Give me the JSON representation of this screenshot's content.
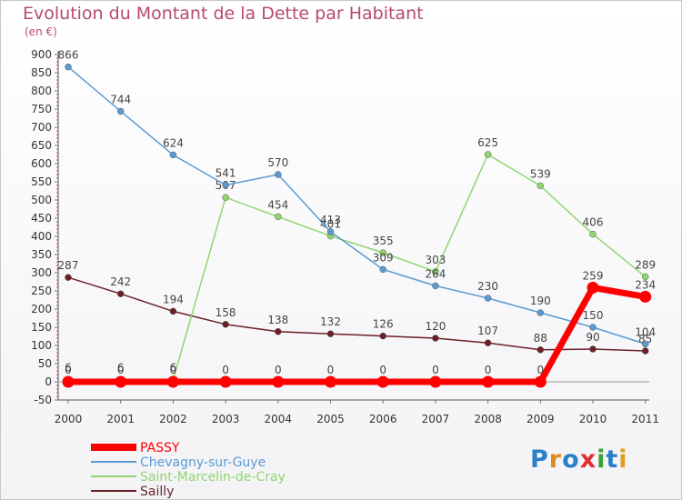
{
  "header": {
    "title": "Evolution du Montant de la Dette par Habitant",
    "unit": "(en €)"
  },
  "logo": {
    "text": "Proxiti",
    "letter_colors": [
      "#2a7fc9",
      "#e08a1e",
      "#2a7fc9",
      "#e03030",
      "#3aa03a",
      "#2a7fc9",
      "#e0a020"
    ]
  },
  "chart_data": {
    "type": "line",
    "title": "Evolution du Montant de la Dette par Habitant",
    "ylabel": "(en €)",
    "xlabel": "",
    "ylim": [
      -50,
      900
    ],
    "yticks": [
      -50,
      0,
      50,
      100,
      150,
      200,
      250,
      300,
      350,
      400,
      450,
      500,
      550,
      600,
      650,
      700,
      750,
      800,
      850,
      900
    ],
    "grid": false,
    "legend_position": "bottom-left",
    "categories": [
      "2000",
      "2001",
      "2002",
      "2003",
      "2004",
      "2005",
      "2006",
      "2007",
      "2008",
      "2009",
      "2010",
      "2011"
    ],
    "series": [
      {
        "name": "Sailly",
        "color": "#6b1f26",
        "width": 1.5,
        "values": [
          287,
          242,
          194,
          158,
          138,
          132,
          126,
          120,
          107,
          88,
          90,
          85
        ],
        "labels": [
          "287",
          "242",
          "194",
          "158",
          "138",
          "132",
          "126",
          "120",
          "107",
          "88",
          "90",
          "85"
        ]
      },
      {
        "name": "Saint-Marcelin-de-Cray",
        "color": "#8fd66e",
        "width": 1.5,
        "values": [
          6,
          6,
          6,
          507,
          454,
          401,
          355,
          303,
          625,
          539,
          406,
          289
        ],
        "labels": [
          "6",
          "6",
          "6",
          "507",
          "454",
          "401",
          "355",
          "303",
          "625",
          "539",
          "406",
          "289"
        ]
      },
      {
        "name": "Chevagny-sur-Guye",
        "color": "#5a9bd4",
        "width": 1.5,
        "values": [
          866,
          744,
          624,
          541,
          570,
          413,
          309,
          264,
          230,
          190,
          150,
          104
        ],
        "labels": [
          "866",
          "744",
          "624",
          "541",
          "570",
          "413",
          "309",
          "264",
          "230",
          "190",
          "150",
          "104"
        ]
      },
      {
        "name": "PASSY",
        "color": "#ff0000",
        "width": 7,
        "values": [
          0,
          0,
          0,
          0,
          0,
          0,
          0,
          0,
          0,
          0,
          259,
          234
        ],
        "labels": [
          "0",
          "0",
          "0",
          "0",
          "0",
          "0",
          "0",
          "0",
          "0",
          "0",
          "259",
          "234"
        ]
      }
    ],
    "legend": [
      {
        "name": "PASSY",
        "color": "#ff0000"
      },
      {
        "name": "Chevagny-sur-Guye",
        "color": "#5a9bd4"
      },
      {
        "name": "Saint-Marcelin-de-Cray",
        "color": "#8fd66e"
      },
      {
        "name": "Sailly",
        "color": "#6b1f26"
      }
    ]
  }
}
